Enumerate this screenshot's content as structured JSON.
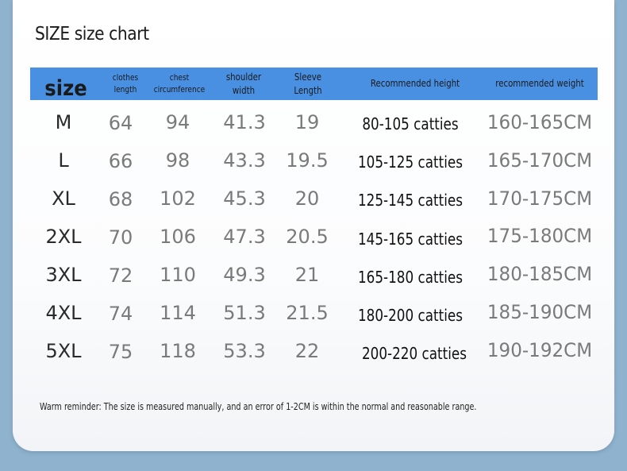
{
  "title": "SIZE size chart",
  "headers": {
    "size": "size",
    "clothes_length": [
      "clothes",
      "length"
    ],
    "chest": [
      "chest",
      "circumference"
    ],
    "shoulder": [
      "shoulder",
      "width"
    ],
    "sleeve": [
      "Sleeve",
      "Length"
    ],
    "height": "Recommended height",
    "weight": "recommended weight"
  },
  "rows": [
    {
      "size": "M",
      "length": "64",
      "chest": "94",
      "shoulder": "41.3",
      "sleeve": "19",
      "height": "80-105 catties",
      "weight": "160-165CM"
    },
    {
      "size": "L",
      "length": "66",
      "chest": "98",
      "shoulder": "43.3",
      "sleeve": "19.5",
      "height": "105-125 catties",
      "weight": "165-170CM"
    },
    {
      "size": "XL",
      "length": "68",
      "chest": "102",
      "shoulder": "45.3",
      "sleeve": "20",
      "height": "125-145 catties",
      "weight": "170-175CM"
    },
    {
      "size": "2XL",
      "length": "70",
      "chest": "106",
      "shoulder": "47.3",
      "sleeve": "20.5",
      "height": "145-165 catties",
      "weight": "175-180CM"
    },
    {
      "size": "3XL",
      "length": "72",
      "chest": "110",
      "shoulder": "49.3",
      "sleeve": "21",
      "height": "165-180 catties",
      "weight": "180-185CM"
    },
    {
      "size": "4XL",
      "length": "74",
      "chest": "114",
      "shoulder": "51.3",
      "sleeve": "21.5",
      "height": "180-200 catties",
      "weight": "185-190CM"
    },
    {
      "size": "5XL",
      "length": "75",
      "chest": "118",
      "shoulder": "53.3",
      "sleeve": "22",
      "height": "200-220 catties",
      "weight": "190-192CM"
    }
  ],
  "note": "Warm reminder: The size is measured manually, and an error of 1-2CM is within the normal and reasonable range.",
  "colors": {
    "header_bar": "#4a90e2",
    "background": "#8fb3cf"
  }
}
